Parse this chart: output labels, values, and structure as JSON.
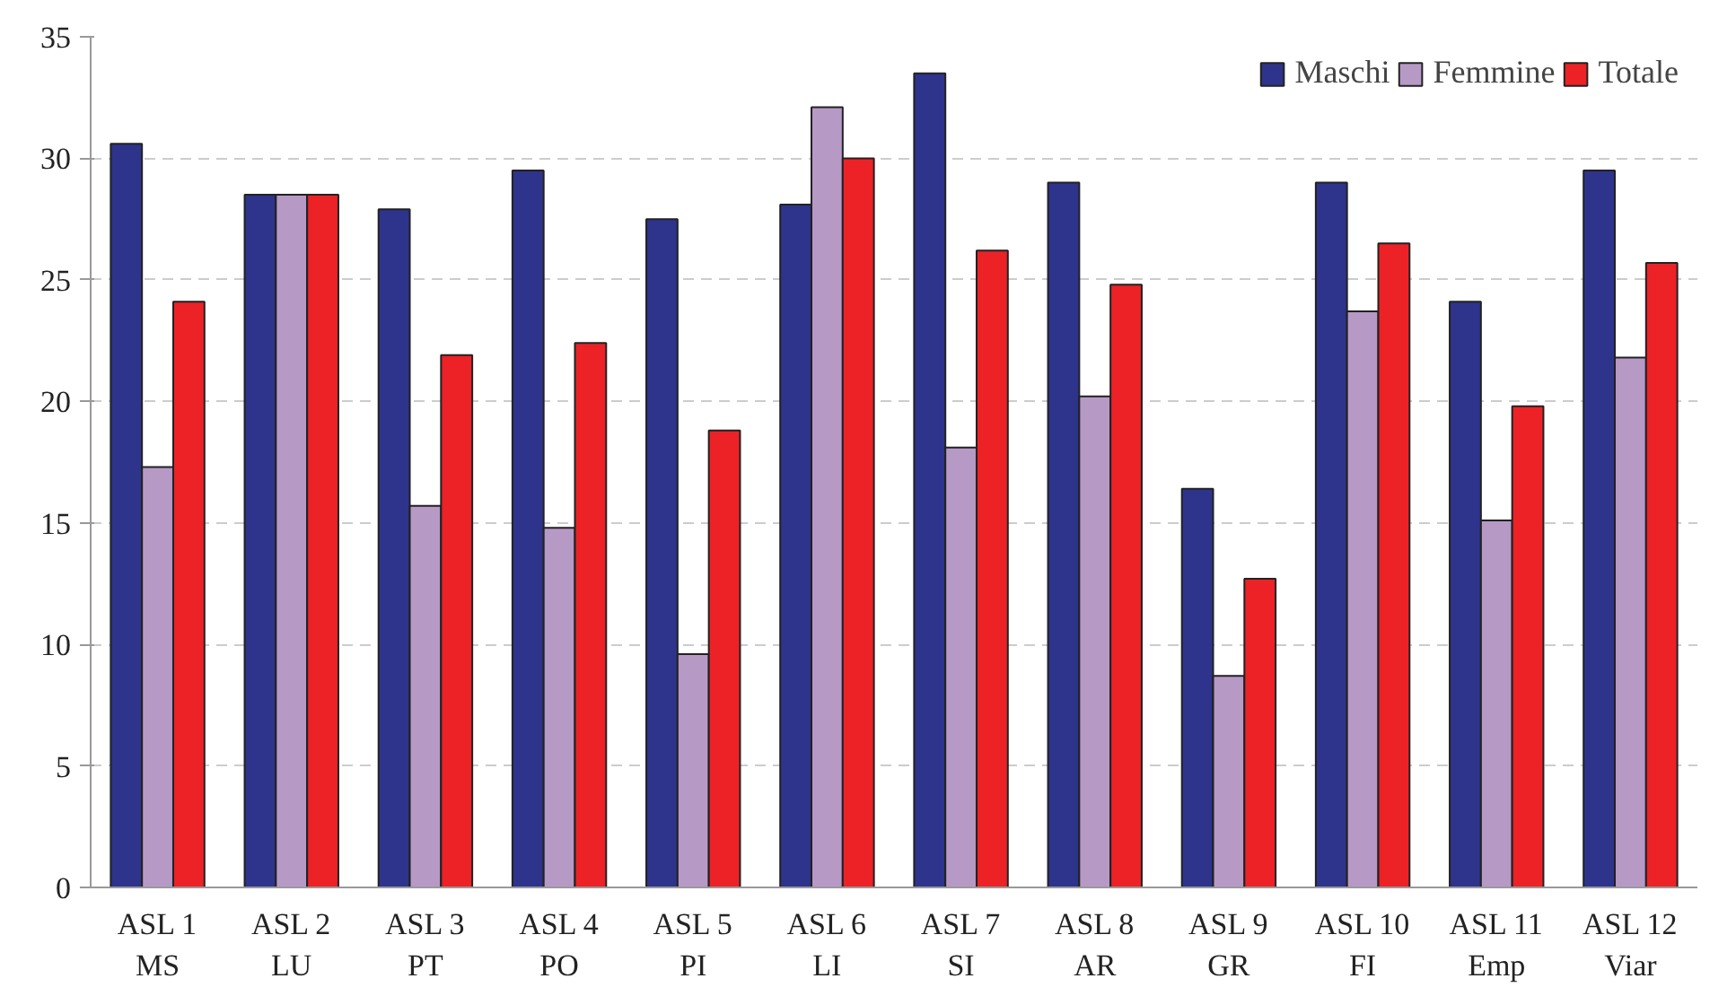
{
  "chart_data": {
    "type": "bar",
    "categories": [
      "ASL 1\nMS",
      "ASL 2\nLU",
      "ASL 3\nPT",
      "ASL 4\nPO",
      "ASL 5\nPI",
      "ASL 6\nLI",
      "ASL 7\nSI",
      "ASL 8\nAR",
      "ASL 9\nGR",
      "ASL 10\nFI",
      "ASL 11\nEmp",
      "ASL 12\nViar"
    ],
    "series": [
      {
        "name": "Maschi",
        "color": "#2e338c",
        "values": [
          30.6,
          28.5,
          27.9,
          29.5,
          27.5,
          28.1,
          33.5,
          29.0,
          16.4,
          29.0,
          24.1,
          29.5
        ]
      },
      {
        "name": "Femmine",
        "color": "#b799c6",
        "values": [
          17.3,
          28.5,
          15.7,
          14.8,
          9.6,
          32.1,
          18.1,
          20.2,
          8.7,
          23.7,
          15.1,
          21.8
        ]
      },
      {
        "name": "Totale",
        "color": "#ec2227",
        "values": [
          24.1,
          28.5,
          21.9,
          22.4,
          18.8,
          30.0,
          26.2,
          24.8,
          12.7,
          26.5,
          19.8,
          25.7
        ]
      }
    ],
    "ylim": [
      0,
      35
    ],
    "yticks": [
      0,
      5,
      10,
      15,
      20,
      25,
      30,
      35
    ],
    "grid": "y",
    "legend": "top right"
  }
}
